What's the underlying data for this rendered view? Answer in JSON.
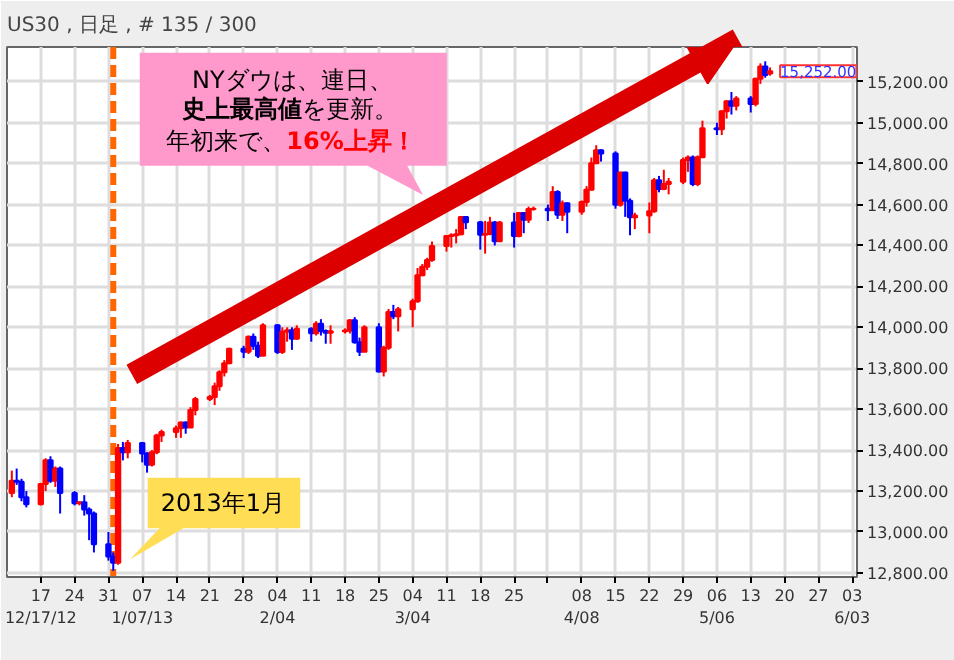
{
  "chart_data": {
    "type": "candlestick",
    "title": "US30 , 日足 , # 135 / 300",
    "x": [
      "2012-12-11",
      "2012-12-12",
      "2012-12-13",
      "2012-12-14",
      "2012-12-17",
      "2012-12-18",
      "2012-12-19",
      "2012-12-20",
      "2012-12-21",
      "2012-12-24",
      "2012-12-25",
      "2012-12-26",
      "2012-12-27",
      "2012-12-28",
      "2012-12-31",
      "2013-01-01",
      "2013-01-02",
      "2013-01-03",
      "2013-01-04",
      "2013-01-07",
      "2013-01-08",
      "2013-01-09",
      "2013-01-10",
      "2013-01-11",
      "2013-01-14",
      "2013-01-15",
      "2013-01-16",
      "2013-01-17",
      "2013-01-18",
      "2013-01-21",
      "2013-01-22",
      "2013-01-23",
      "2013-01-24",
      "2013-01-25",
      "2013-01-28",
      "2013-01-29",
      "2013-01-30",
      "2013-01-31",
      "2013-02-01",
      "2013-02-04",
      "2013-02-05",
      "2013-02-06",
      "2013-02-07",
      "2013-02-08",
      "2013-02-11",
      "2013-02-12",
      "2013-02-13",
      "2013-02-14",
      "2013-02-15",
      "2013-02-18",
      "2013-02-19",
      "2013-02-20",
      "2013-02-21",
      "2013-02-22",
      "2013-02-25",
      "2013-02-26",
      "2013-02-27",
      "2013-02-28",
      "2013-03-01",
      "2013-03-04",
      "2013-03-05",
      "2013-03-06",
      "2013-03-07",
      "2013-03-08",
      "2013-03-11",
      "2013-03-12",
      "2013-03-13",
      "2013-03-14",
      "2013-03-15",
      "2013-03-18",
      "2013-03-19",
      "2013-03-20",
      "2013-03-21",
      "2013-03-22",
      "2013-03-25",
      "2013-03-26",
      "2013-03-27",
      "2013-03-28",
      "2013-03-29",
      "2013-04-01",
      "2013-04-02",
      "2013-04-03",
      "2013-04-04",
      "2013-04-05",
      "2013-04-08",
      "2013-04-09",
      "2013-04-10",
      "2013-04-11",
      "2013-04-12",
      "2013-04-15",
      "2013-04-16",
      "2013-04-17",
      "2013-04-18",
      "2013-04-19",
      "2013-04-22",
      "2013-04-23",
      "2013-04-24",
      "2013-04-25",
      "2013-04-26",
      "2013-04-29",
      "2013-04-30",
      "2013-05-01",
      "2013-05-02",
      "2013-05-03",
      "2013-05-06",
      "2013-05-07",
      "2013-05-08",
      "2013-05-09",
      "2013-05-10",
      "2013-05-13",
      "2013-05-14",
      "2013-05-15",
      "2013-05-16",
      "2013-05-17"
    ],
    "ohlc": [
      [
        13190,
        13300,
        13170,
        13250
      ],
      [
        13250,
        13310,
        13230,
        13245
      ],
      [
        13245,
        13260,
        13150,
        13170
      ],
      [
        13170,
        13200,
        13120,
        13135
      ],
      [
        13135,
        13240,
        13130,
        13235
      ],
      [
        13235,
        13360,
        13200,
        13350
      ],
      [
        13350,
        13370,
        13240,
        13250
      ],
      [
        13250,
        13320,
        13220,
        13310
      ],
      [
        13310,
        13320,
        13090,
        13190
      ],
      [
        13190,
        13200,
        13130,
        13140
      ],
      [
        13140,
        13150,
        13130,
        13145
      ],
      [
        13145,
        13180,
        13080,
        13110
      ],
      [
        13110,
        13120,
        12960,
        13090
      ],
      [
        13090,
        13100,
        12900,
        12940
      ],
      [
        12940,
        13000,
        12860,
        12880
      ],
      [
        12880,
        12900,
        12810,
        12850
      ],
      [
        12850,
        13430,
        12840,
        13410
      ],
      [
        13410,
        13440,
        13350,
        13390
      ],
      [
        13390,
        13450,
        13360,
        13435
      ],
      [
        13435,
        13440,
        13340,
        13384
      ],
      [
        13384,
        13390,
        13290,
        13328
      ],
      [
        13328,
        13400,
        13320,
        13390
      ],
      [
        13390,
        13480,
        13380,
        13471
      ],
      [
        13471,
        13500,
        13440,
        13488
      ],
      [
        13488,
        13520,
        13460,
        13507
      ],
      [
        13507,
        13540,
        13460,
        13535
      ],
      [
        13535,
        13540,
        13480,
        13511
      ],
      [
        13511,
        13610,
        13510,
        13596
      ],
      [
        13596,
        13660,
        13570,
        13650
      ],
      [
        13650,
        13670,
        13640,
        13660
      ],
      [
        13660,
        13730,
        13620,
        13712
      ],
      [
        13712,
        13790,
        13690,
        13780
      ],
      [
        13780,
        13840,
        13760,
        13825
      ],
      [
        13825,
        13900,
        13820,
        13896
      ],
      [
        13896,
        13910,
        13850,
        13881
      ],
      [
        13881,
        13960,
        13870,
        13954
      ],
      [
        13954,
        13970,
        13890,
        13910
      ],
      [
        13910,
        13930,
        13850,
        13861
      ],
      [
        13861,
        14020,
        13860,
        14010
      ],
      [
        14010,
        14015,
        13870,
        13880
      ],
      [
        13880,
        14000,
        13870,
        13979
      ],
      [
        13979,
        14000,
        13930,
        13986
      ],
      [
        13986,
        14000,
        13890,
        13944
      ],
      [
        13944,
        14010,
        13940,
        13993
      ],
      [
        13993,
        14000,
        13930,
        13971
      ],
      [
        13971,
        14030,
        13960,
        14018
      ],
      [
        14018,
        14040,
        13960,
        13982
      ],
      [
        13982,
        13990,
        13920,
        13973
      ],
      [
        13973,
        14010,
        13920,
        13981
      ],
      [
        13981,
        13995,
        13970,
        13985
      ],
      [
        13985,
        14040,
        13970,
        14035
      ],
      [
        14035,
        14050,
        13920,
        13927
      ],
      [
        13927,
        13950,
        13860,
        13881
      ],
      [
        13881,
        14010,
        13880,
        14000
      ],
      [
        14000,
        14020,
        13780,
        13784
      ],
      [
        13784,
        13910,
        13760,
        13900
      ],
      [
        13900,
        14090,
        13890,
        14075
      ],
      [
        14075,
        14110,
        14040,
        14054
      ],
      [
        14054,
        14100,
        13980,
        14089
      ],
      [
        14089,
        14140,
        14000,
        14128
      ],
      [
        14128,
        14290,
        14120,
        14254
      ],
      [
        14254,
        14310,
        14250,
        14296
      ],
      [
        14296,
        14340,
        14280,
        14329
      ],
      [
        14329,
        14420,
        14320,
        14397
      ],
      [
        14397,
        14450,
        14370,
        14447
      ],
      [
        14447,
        14460,
        14390,
        14450
      ],
      [
        14450,
        14480,
        14410,
        14455
      ],
      [
        14455,
        14540,
        14450,
        14539
      ],
      [
        14539,
        14540,
        14480,
        14514
      ],
      [
        14514,
        14520,
        14380,
        14452
      ],
      [
        14452,
        14520,
        14360,
        14456
      ],
      [
        14456,
        14540,
        14450,
        14512
      ],
      [
        14512,
        14520,
        14400,
        14421
      ],
      [
        14421,
        14520,
        14420,
        14512
      ],
      [
        14512,
        14560,
        14390,
        14447
      ],
      [
        14447,
        14560,
        14440,
        14559
      ],
      [
        14559,
        14560,
        14460,
        14526
      ],
      [
        14526,
        14590,
        14510,
        14578
      ],
      [
        14578,
        14590,
        14570,
        14580
      ],
      [
        14580,
        14600,
        14520,
        14572
      ],
      [
        14572,
        14690,
        14570,
        14662
      ],
      [
        14662,
        14670,
        14530,
        14550
      ],
      [
        14550,
        14620,
        14520,
        14606
      ],
      [
        14606,
        14610,
        14460,
        14565
      ],
      [
        14565,
        14620,
        14550,
        14613
      ],
      [
        14613,
        14690,
        14590,
        14673
      ],
      [
        14673,
        14830,
        14670,
        14802
      ],
      [
        14802,
        14890,
        14800,
        14865
      ],
      [
        14865,
        14870,
        14810,
        14850
      ],
      [
        14850,
        14860,
        14580,
        14599
      ],
      [
        14599,
        14760,
        14590,
        14757
      ],
      [
        14757,
        14760,
        14540,
        14619
      ],
      [
        14619,
        14630,
        14450,
        14538
      ],
      [
        14538,
        14560,
        14480,
        14547
      ],
      [
        14547,
        14610,
        14460,
        14567
      ],
      [
        14567,
        14730,
        14560,
        14719
      ],
      [
        14719,
        14740,
        14660,
        14676
      ],
      [
        14676,
        14770,
        14670,
        14700
      ],
      [
        14700,
        14730,
        14650,
        14712
      ],
      [
        14712,
        14830,
        14700,
        14818
      ],
      [
        14818,
        14840,
        14760,
        14830
      ],
      [
        14830,
        14840,
        14690,
        14700
      ],
      [
        14700,
        14840,
        14690,
        14831
      ],
      [
        14831,
        15010,
        14830,
        14973
      ],
      [
        14973,
        15000,
        14940,
        14968
      ],
      [
        14968,
        15060,
        14940,
        15056
      ],
      [
        15056,
        15110,
        15020,
        15105
      ],
      [
        15105,
        15150,
        15040,
        15083
      ],
      [
        15083,
        15130,
        15060,
        15118
      ],
      [
        15118,
        15130,
        15050,
        15091
      ],
      [
        15091,
        15220,
        15080,
        15215
      ],
      [
        15215,
        15290,
        15190,
        15275
      ],
      [
        15275,
        15300,
        15220,
        15233
      ],
      [
        15240,
        15270,
        15230,
        15252
      ]
    ],
    "colors": [
      "#ff0000",
      "#0000ff",
      "#0000ff",
      "#0000ff",
      "#ff0000",
      "#ff0000",
      "#0000ff",
      "#ff0000",
      "#0000ff",
      "#0000ff",
      "#ff0000",
      "#0000ff",
      "#0000ff",
      "#0000ff",
      "#0000ff",
      "#0000ff",
      "#ff0000",
      "#0000ff",
      "#ff0000",
      "#0000ff",
      "#0000ff",
      "#ff0000",
      "#ff0000",
      "#ff0000",
      "#ff0000",
      "#ff0000",
      "#0000ff",
      "#ff0000",
      "#ff0000",
      "#ff0000",
      "#ff0000",
      "#ff0000",
      "#ff0000",
      "#ff0000",
      "#0000ff",
      "#ff0000",
      "#0000ff",
      "#0000ff",
      "#ff0000",
      "#0000ff",
      "#ff0000",
      "#ff0000",
      "#0000ff",
      "#ff0000",
      "#0000ff",
      "#ff0000",
      "#0000ff",
      "#0000ff",
      "#ff0000",
      "#ff0000",
      "#ff0000",
      "#0000ff",
      "#0000ff",
      "#ff0000",
      "#0000ff",
      "#ff0000",
      "#ff0000",
      "#0000ff",
      "#ff0000",
      "#ff0000",
      "#ff0000",
      "#ff0000",
      "#ff0000",
      "#ff0000",
      "#ff0000",
      "#ff0000",
      "#ff0000",
      "#ff0000",
      "#0000ff",
      "#0000ff",
      "#ff0000",
      "#ff0000",
      "#0000ff",
      "#ff0000",
      "#0000ff",
      "#ff0000",
      "#0000ff",
      "#ff0000",
      "#ff0000",
      "#0000ff",
      "#ff0000",
      "#0000ff",
      "#ff0000",
      "#0000ff",
      "#ff0000",
      "#ff0000",
      "#ff0000",
      "#ff0000",
      "#0000ff",
      "#0000ff",
      "#ff0000",
      "#0000ff",
      "#0000ff",
      "#ff0000",
      "#ff0000",
      "#ff0000",
      "#0000ff",
      "#ff0000",
      "#ff0000",
      "#ff0000",
      "#ff0000",
      "#0000ff",
      "#ff0000",
      "#ff0000",
      "#0000ff",
      "#ff0000",
      "#ff0000",
      "#0000ff",
      "#ff0000",
      "#0000ff",
      "#ff0000",
      "#ff0000",
      "#0000ff",
      "#ff0000"
    ],
    "xlim": [
      "2012-12-10",
      "2013-06-04"
    ],
    "xticks": [
      {
        "value": "2012-12-17",
        "label": "17\n12/17/12"
      },
      {
        "value": "2012-12-24",
        "label": "24"
      },
      {
        "value": "2012-12-31",
        "label": "31"
      },
      {
        "value": "2013-01-07",
        "label": "07\n1/07/13"
      },
      {
        "value": "2013-01-14",
        "label": "14"
      },
      {
        "value": "2013-01-21",
        "label": "21"
      },
      {
        "value": "2013-01-28",
        "label": "28"
      },
      {
        "value": "2013-02-04",
        "label": "04\n2/04"
      },
      {
        "value": "2013-02-11",
        "label": "11"
      },
      {
        "value": "2013-02-18",
        "label": "18"
      },
      {
        "value": "2013-02-25",
        "label": "25"
      },
      {
        "value": "2013-03-04",
        "label": "04\n3/04"
      },
      {
        "value": "2013-03-11",
        "label": "11"
      },
      {
        "value": "2013-03-18",
        "label": "18"
      },
      {
        "value": "2013-03-25",
        "label": "25"
      },
      {
        "value": "2013-04-01",
        "label": null
      },
      {
        "value": "2013-04-08",
        "label": "08\n4/08"
      },
      {
        "value": "2013-04-15",
        "label": "15"
      },
      {
        "value": "2013-04-22",
        "label": "22"
      },
      {
        "value": "2013-04-29",
        "label": "29"
      },
      {
        "value": "2013-05-06",
        "label": "06\n5/06"
      },
      {
        "value": "2013-05-13",
        "label": "13"
      },
      {
        "value": "2013-05-20",
        "label": "20"
      },
      {
        "value": "2013-05-27",
        "label": "27"
      },
      {
        "value": "2013-06-03",
        "label": "03\n6/03"
      }
    ],
    "ylim": [
      12780,
      15370
    ],
    "yticks": [
      {
        "value": 12800,
        "label": "12,800.00"
      },
      {
        "value": 13000,
        "label": "13,000.00"
      },
      {
        "value": 13200,
        "label": "13,200.00"
      },
      {
        "value": 13400,
        "label": "13,400.00"
      },
      {
        "value": 13600,
        "label": "13,600.00"
      },
      {
        "value": 13800,
        "label": "13,800.00"
      },
      {
        "value": 14000,
        "label": "14,000.00"
      },
      {
        "value": 14200,
        "label": "14,200.00"
      },
      {
        "value": 14400,
        "label": "14,400.00"
      },
      {
        "value": 14600,
        "label": "14,600.00"
      },
      {
        "value": 14800,
        "label": "14,800.00"
      },
      {
        "value": 15000,
        "label": "15,000.00"
      },
      {
        "value": 15200,
        "label": "15,200.00"
      }
    ],
    "grid": true,
    "ref_lines": [
      {
        "axis": "x",
        "value": "2013-01-01",
        "color": "#ff6600",
        "line_style": "dashed"
      }
    ],
    "annotations": [
      "NYダウは、連日、",
      "史上最高値",
      "を更新。",
      "年初来で、",
      "16%上昇！",
      "2013年1月",
      "15,252.00"
    ]
  }
}
